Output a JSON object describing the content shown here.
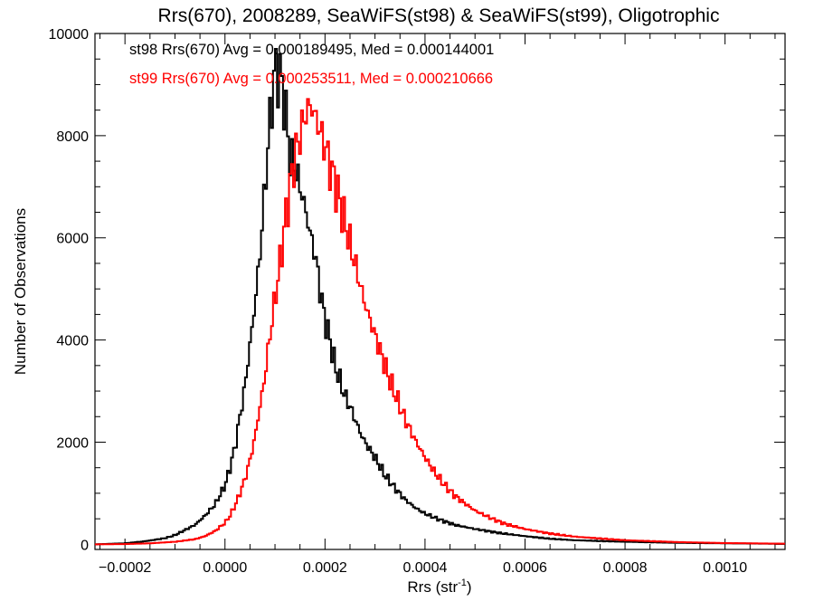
{
  "chart_data": {
    "type": "line",
    "title": "Rrs(670), 2008289, SeaWiFS(st98) & SeaWiFS(st99), Oligotrophic",
    "xlabel_main": "Rrs (str",
    "xlabel_sup": "-1",
    "xlabel_end": ")",
    "ylabel": "Number of Observations",
    "xlim": [
      -0.00026,
      0.00112
    ],
    "ylim": [
      -100,
      10000
    ],
    "xticks": [
      -0.0002,
      0.0,
      0.0002,
      0.0004,
      0.0006,
      0.0008,
      0.001
    ],
    "xtick_labels": [
      "−0.0002",
      "0.0000",
      "0.0002",
      "0.0004",
      "0.0006",
      "0.0008",
      "0.0010"
    ],
    "yticks": [
      0,
      2000,
      4000,
      6000,
      8000,
      10000
    ],
    "ytick_labels": [
      "0",
      "2000",
      "4000",
      "6000",
      "8000",
      "10000"
    ],
    "annotations": [
      {
        "text": "st98 Rrs(670) Avg = 0.000189495, Med = 0.000144001",
        "color": "#000000"
      },
      {
        "text": "st99 Rrs(670) Avg = 0.000253511, Med = 0.000210666",
        "color": "#ff0000"
      }
    ],
    "series": [
      {
        "color": "#000000",
        "points": [
          [
            -0.00026,
            0
          ],
          [
            -0.0002,
            20
          ],
          [
            -0.00016,
            60
          ],
          [
            -0.00012,
            120
          ],
          [
            -0.0001,
            180
          ],
          [
            -8e-05,
            280
          ],
          [
            -6e-05,
            380
          ],
          [
            -4e-05,
            560
          ],
          [
            -2e-05,
            780
          ],
          [
            0.0,
            1150
          ],
          [
            1e-05,
            1500
          ],
          [
            2e-05,
            1900
          ],
          [
            3e-05,
            2500
          ],
          [
            4e-05,
            3100
          ],
          [
            5e-05,
            3900
          ],
          [
            6e-05,
            4700
          ],
          [
            7e-05,
            5700
          ],
          [
            8e-05,
            7000
          ],
          [
            9e-05,
            8300
          ],
          [
            0.0001,
            9300
          ],
          [
            0.00011,
            9200
          ],
          [
            0.00012,
            8600
          ],
          [
            0.00013,
            7600
          ],
          [
            0.00014,
            7400
          ],
          [
            0.00015,
            7000
          ],
          [
            0.00016,
            6600
          ],
          [
            0.00017,
            6100
          ],
          [
            0.00018,
            5700
          ],
          [
            0.00019,
            5000
          ],
          [
            0.0002,
            4400
          ],
          [
            0.00021,
            4000
          ],
          [
            0.00022,
            3500
          ],
          [
            0.00023,
            3200
          ],
          [
            0.00024,
            2900
          ],
          [
            0.00025,
            2700
          ],
          [
            0.00026,
            2450
          ],
          [
            0.00027,
            2200
          ],
          [
            0.00028,
            2000
          ],
          [
            0.0003,
            1700
          ],
          [
            0.00032,
            1350
          ],
          [
            0.00034,
            1100
          ],
          [
            0.00036,
            880
          ],
          [
            0.00038,
            720
          ],
          [
            0.0004,
            600
          ],
          [
            0.00043,
            480
          ],
          [
            0.00046,
            380
          ],
          [
            0.0005,
            300
          ],
          [
            0.00055,
            220
          ],
          [
            0.0006,
            160
          ],
          [
            0.00065,
            110
          ],
          [
            0.0007,
            80
          ],
          [
            0.0008,
            50
          ],
          [
            0.0009,
            30
          ],
          [
            0.001,
            20
          ],
          [
            0.00112,
            10
          ]
        ]
      },
      {
        "color": "#ff0000",
        "points": [
          [
            -0.00026,
            0
          ],
          [
            -0.0002,
            5
          ],
          [
            -0.00015,
            20
          ],
          [
            -0.0001,
            50
          ],
          [
            -6e-05,
            100
          ],
          [
            -4e-05,
            160
          ],
          [
            -2e-05,
            260
          ],
          [
            0.0,
            420
          ],
          [
            1e-05,
            560
          ],
          [
            2e-05,
            760
          ],
          [
            3e-05,
            1000
          ],
          [
            4e-05,
            1280
          ],
          [
            5e-05,
            1650
          ],
          [
            6e-05,
            2100
          ],
          [
            7e-05,
            2700
          ],
          [
            8e-05,
            3300
          ],
          [
            9e-05,
            4100
          ],
          [
            0.0001,
            4800
          ],
          [
            0.00011,
            5500
          ],
          [
            0.00012,
            6300
          ],
          [
            0.00013,
            7000
          ],
          [
            0.00014,
            7600
          ],
          [
            0.00015,
            8000
          ],
          [
            0.00016,
            8400
          ],
          [
            0.00017,
            8600
          ],
          [
            0.00018,
            8400
          ],
          [
            0.00019,
            8100
          ],
          [
            0.0002,
            7800
          ],
          [
            0.00021,
            7400
          ],
          [
            0.00022,
            7100
          ],
          [
            0.00023,
            6700
          ],
          [
            0.00024,
            6300
          ],
          [
            0.00025,
            5900
          ],
          [
            0.00026,
            5500
          ],
          [
            0.00027,
            5100
          ],
          [
            0.00028,
            4700
          ],
          [
            0.00029,
            4400
          ],
          [
            0.0003,
            4100
          ],
          [
            0.00031,
            3800
          ],
          [
            0.00032,
            3500
          ],
          [
            0.00033,
            3200
          ],
          [
            0.00034,
            2950
          ],
          [
            0.00035,
            2700
          ],
          [
            0.00036,
            2450
          ],
          [
            0.00038,
            2050
          ],
          [
            0.0004,
            1700
          ],
          [
            0.00042,
            1400
          ],
          [
            0.00044,
            1150
          ],
          [
            0.00046,
            950
          ],
          [
            0.00048,
            800
          ],
          [
            0.0005,
            660
          ],
          [
            0.00053,
            520
          ],
          [
            0.00056,
            400
          ],
          [
            0.0006,
            300
          ],
          [
            0.00065,
            210
          ],
          [
            0.0007,
            150
          ],
          [
            0.0008,
            80
          ],
          [
            0.0009,
            45
          ],
          [
            0.001,
            25
          ],
          [
            0.00112,
            12
          ]
        ]
      }
    ]
  }
}
